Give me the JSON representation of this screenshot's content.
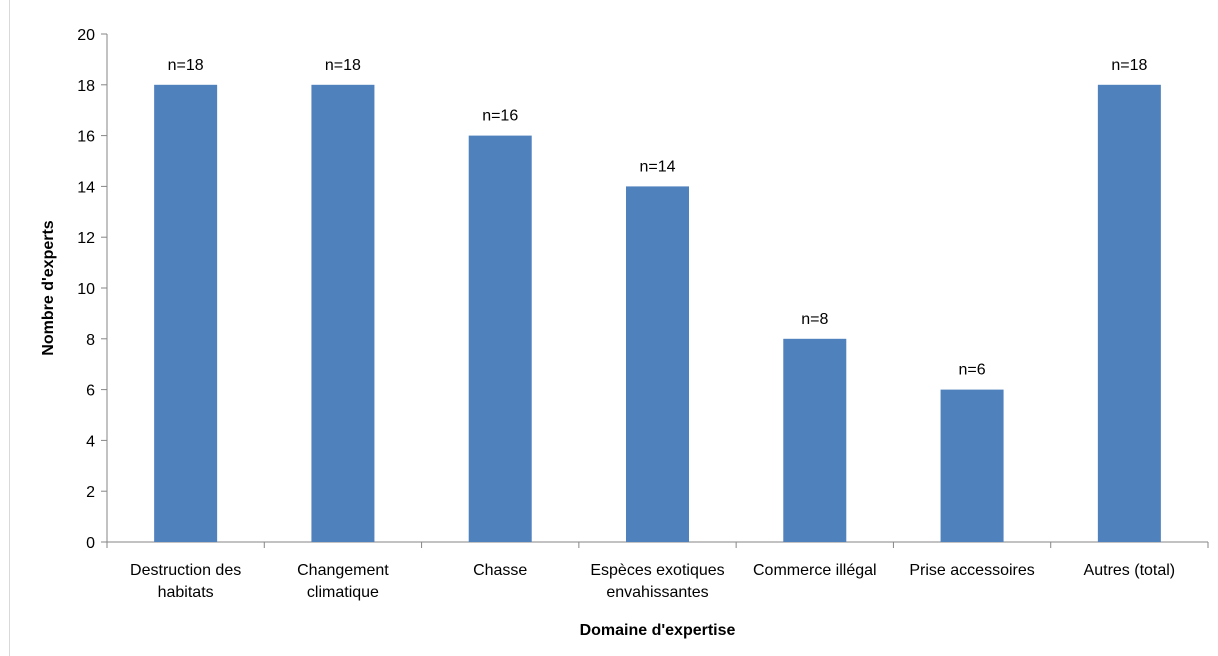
{
  "chart_data": {
    "type": "bar",
    "categories": [
      [
        "Destruction des",
        "habitats"
      ],
      [
        "Changement",
        "climatique"
      ],
      [
        "Chasse"
      ],
      [
        "Espèces exotiques",
        "envahissantes"
      ],
      [
        "Commerce illégal"
      ],
      [
        "Prise accessoires"
      ],
      [
        "Autres (total)"
      ]
    ],
    "values": [
      18,
      18,
      16,
      14,
      8,
      6,
      18
    ],
    "data_labels": [
      "n=18",
      "n=18",
      "n=16",
      "n=14",
      "n=8",
      "n=6",
      "n=18"
    ],
    "xlabel": "Domaine d'expertise",
    "ylabel": "Nombre d'experts",
    "ylim": [
      0,
      20
    ],
    "yticks": [
      0,
      2,
      4,
      6,
      8,
      10,
      12,
      14,
      16,
      18,
      20
    ],
    "grid": false,
    "legend": "none",
    "bar_color": "#4f81bd"
  }
}
